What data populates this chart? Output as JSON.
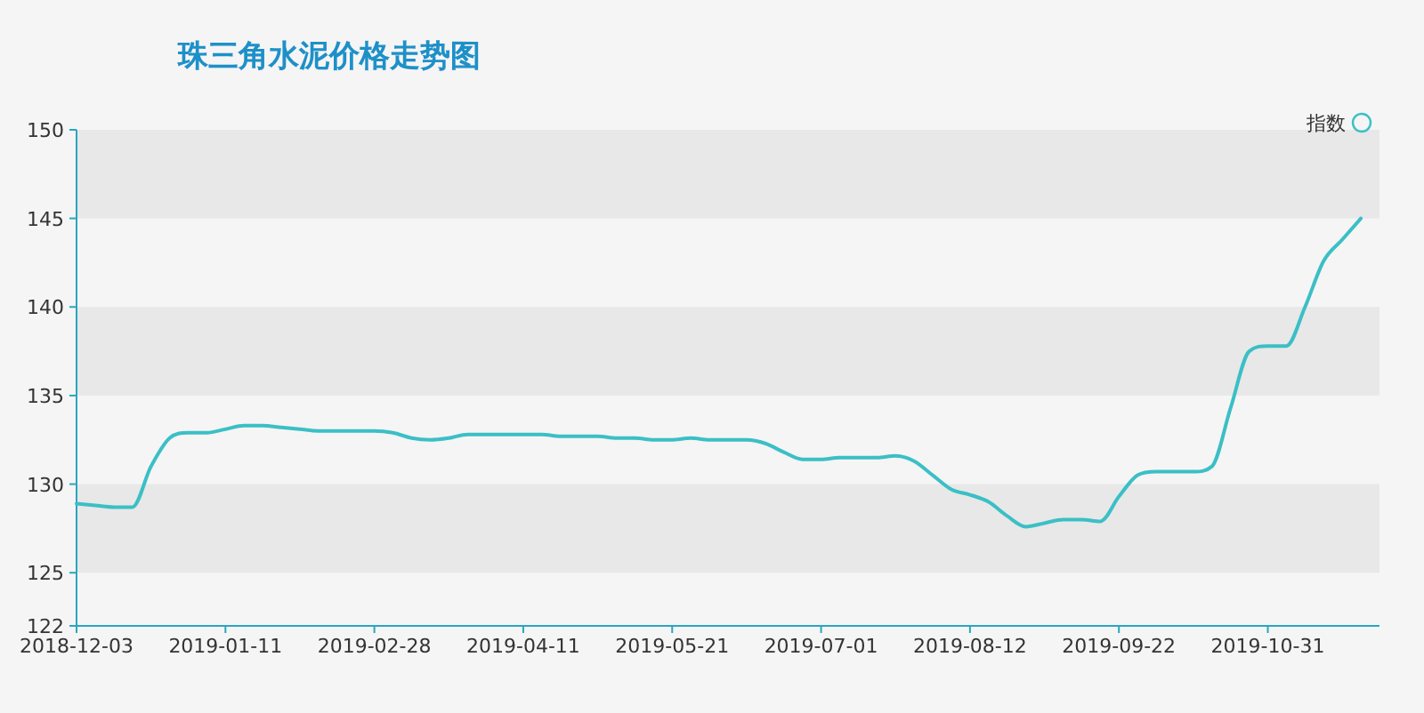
{
  "chart_data": {
    "type": "line",
    "title": "珠三角水泥价格走势图",
    "categories": [
      "2018-12-03",
      null,
      null,
      null,
      null,
      null,
      null,
      null,
      "2019-01-11",
      null,
      null,
      null,
      null,
      null,
      null,
      null,
      "2019-02-28",
      null,
      null,
      null,
      null,
      null,
      null,
      null,
      "2019-04-11",
      null,
      null,
      null,
      null,
      null,
      null,
      null,
      "2019-05-21",
      null,
      null,
      null,
      null,
      null,
      null,
      null,
      "2019-07-01",
      null,
      null,
      null,
      null,
      null,
      null,
      null,
      "2019-08-12",
      null,
      null,
      null,
      null,
      null,
      null,
      null,
      "2019-09-22",
      null,
      null,
      null,
      null,
      null,
      null,
      null,
      "2019-10-31",
      null,
      null,
      null,
      null,
      null,
      null
    ],
    "series": [
      {
        "name": "指数",
        "color": "#3bbfc6",
        "values": [
          128.9,
          128.8,
          128.7,
          128.7,
          131.0,
          132.6,
          132.9,
          132.9,
          133.1,
          133.3,
          133.3,
          133.2,
          133.1,
          133.0,
          133.0,
          133.0,
          133.0,
          132.9,
          132.6,
          132.5,
          132.6,
          132.8,
          132.8,
          132.8,
          132.8,
          132.8,
          132.7,
          132.7,
          132.7,
          132.6,
          132.6,
          132.5,
          132.5,
          132.6,
          132.5,
          132.5,
          132.5,
          132.3,
          131.8,
          131.4,
          131.4,
          131.5,
          131.5,
          131.5,
          131.6,
          131.3,
          130.5,
          129.7,
          129.4,
          129.0,
          128.2,
          127.6,
          127.8,
          128.0,
          128.0,
          127.9,
          129.3,
          130.5,
          130.7,
          130.7,
          130.7,
          131.0,
          134.3,
          137.5,
          137.8,
          137.8,
          140.0,
          142.6,
          143.8,
          145.0,
          null
        ]
      }
    ],
    "ylim": [
      122,
      150
    ],
    "yticks": [
      122,
      125,
      130,
      135,
      140,
      145,
      150
    ],
    "bands": [
      {
        "axis": "y",
        "from": 125,
        "to": 130,
        "color": "#e8e8e8"
      },
      {
        "axis": "y",
        "from": 135,
        "to": 140,
        "color": "#e8e8e8"
      },
      {
        "axis": "y",
        "from": 145,
        "to": 150,
        "color": "#e8e8e8"
      }
    ],
    "legend": "top right",
    "line_style": "solid"
  }
}
